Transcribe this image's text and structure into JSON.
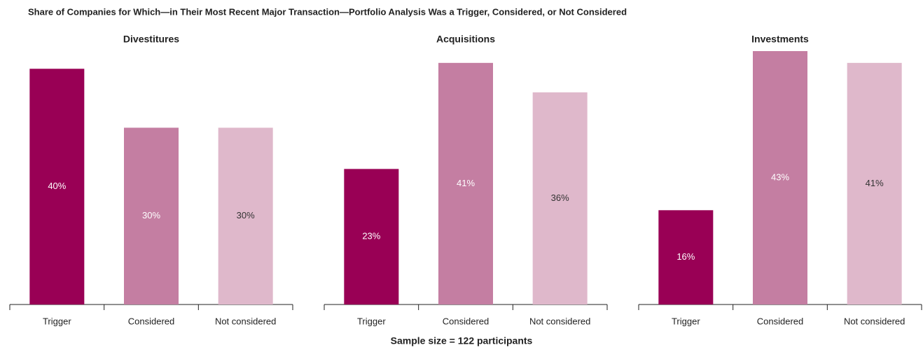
{
  "title": "Share of Companies for Which—in Their Most Recent Major Transaction—Portfolio Analysis Was a Trigger, Considered, or Not Considered",
  "note": "Sample size = 122 participants",
  "chart_data": [
    {
      "type": "bar",
      "title": "Divestitures",
      "categories": [
        "Trigger",
        "Considered",
        "Not considered"
      ],
      "values": [
        40,
        30,
        30
      ],
      "value_labels": [
        "40%",
        "30%",
        "30%"
      ],
      "colors": [
        "#990055",
        "#c47ea2",
        "#dfb8cb"
      ]
    },
    {
      "type": "bar",
      "title": "Acquisitions",
      "categories": [
        "Trigger",
        "Considered",
        "Not considered"
      ],
      "values": [
        23,
        41,
        36
      ],
      "value_labels": [
        "23%",
        "41%",
        "36%"
      ],
      "colors": [
        "#990055",
        "#c47ea2",
        "#dfb8cb"
      ]
    },
    {
      "type": "bar",
      "title": "Investments",
      "categories": [
        "Trigger",
        "Considered",
        "Not considered"
      ],
      "values": [
        16,
        43,
        41
      ],
      "value_labels": [
        "16%",
        "43%",
        "41%"
      ],
      "colors": [
        "#990055",
        "#c47ea2",
        "#dfb8cb"
      ]
    }
  ]
}
